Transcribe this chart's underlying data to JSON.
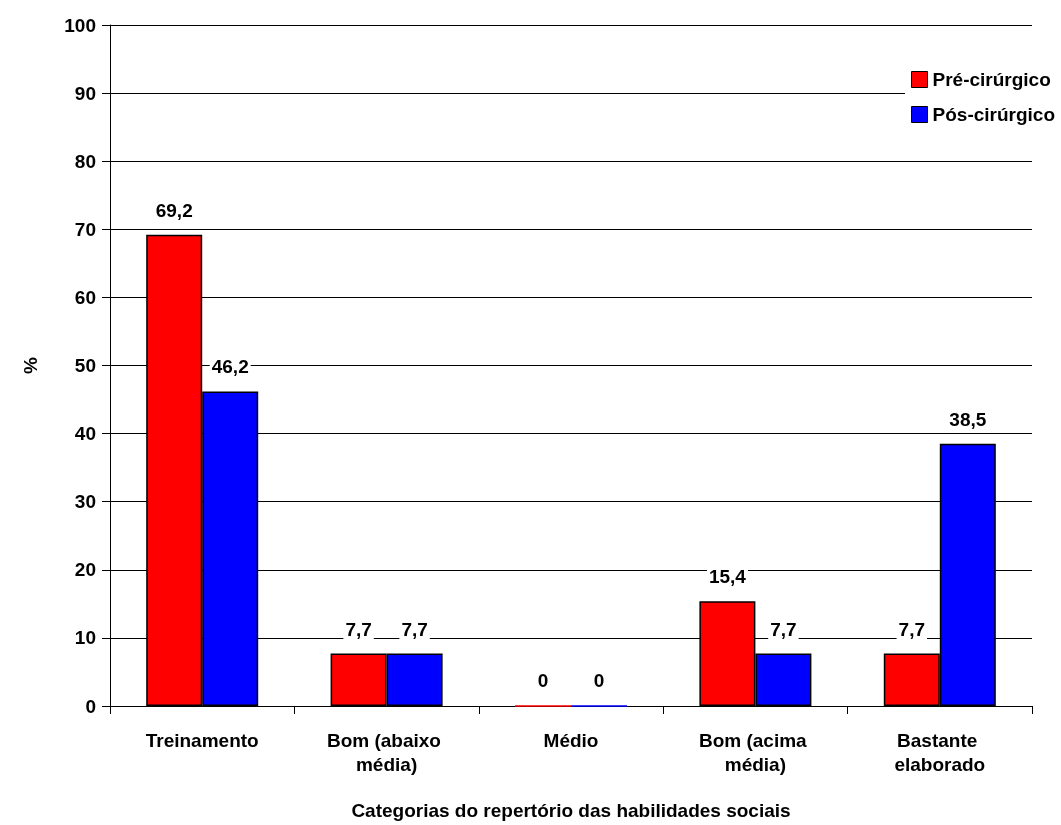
{
  "chart_data": {
    "type": "bar",
    "xlabel": "Categorias do repertório das habilidades sociais",
    "ylabel": "%",
    "categories": [
      "Treinamento",
      "Bom (abaixo média)",
      "Médio",
      "Bom (acima média)",
      "Bastante elaborado"
    ],
    "series": [
      {
        "name": "Pré-cirúrgico",
        "color": "#ff0000",
        "values": [
          69.2,
          7.7,
          0,
          15.4,
          7.7
        ],
        "value_labels": [
          "69,2",
          "7,7",
          "0",
          "15,4",
          "7,7"
        ]
      },
      {
        "name": "Pós-cirúrgico",
        "color": "#0000ff",
        "values": [
          46.2,
          7.7,
          0,
          7.7,
          38.5
        ],
        "value_labels": [
          "46,2",
          "7,7",
          "0",
          "7,7",
          "38,5"
        ]
      }
    ],
    "ylim": [
      0,
      100
    ],
    "yticks": [
      0,
      10,
      20,
      30,
      40,
      50,
      60,
      70,
      80,
      90,
      100
    ],
    "grid": "y",
    "legend": "top right"
  }
}
